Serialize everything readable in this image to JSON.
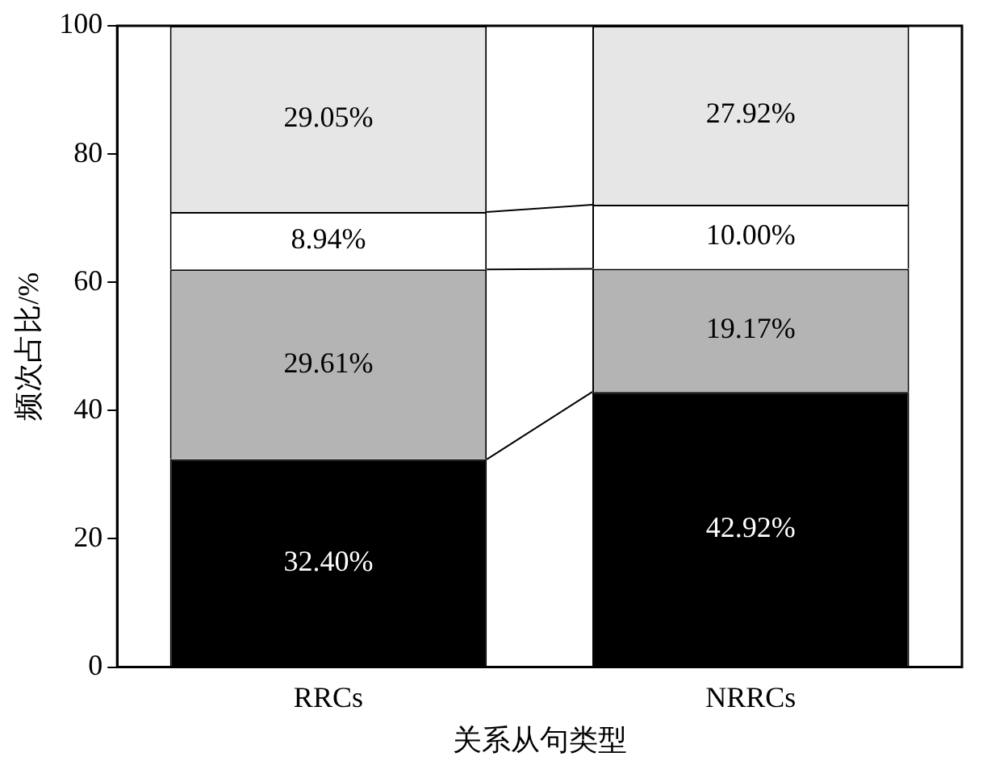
{
  "chart_data": {
    "type": "bar",
    "stacked": true,
    "xlabel": "关系从句类型",
    "ylabel": "频次占比/%",
    "categories": [
      "RRCs",
      "NRRCs"
    ],
    "series": [
      {
        "color": "#000000",
        "values": [
          32.4,
          42.92
        ],
        "value_labels": [
          "32.40%",
          "42.92%"
        ]
      },
      {
        "color": "#b4b4b4",
        "values": [
          29.61,
          19.17
        ],
        "value_labels": [
          "29.61%",
          "19.17%"
        ]
      },
      {
        "color": "#ffffff",
        "values": [
          8.94,
          10.0
        ],
        "value_labels": [
          "8.94%",
          "10.00%"
        ]
      },
      {
        "color": "#e6e6e6",
        "values": [
          29.05,
          27.92
        ],
        "value_labels": [
          "29.05%",
          "27.92%"
        ]
      }
    ],
    "ylim": [
      0,
      100
    ],
    "yticks": [
      0,
      20,
      40,
      60,
      80,
      100
    ],
    "grid": false,
    "legend": false
  }
}
